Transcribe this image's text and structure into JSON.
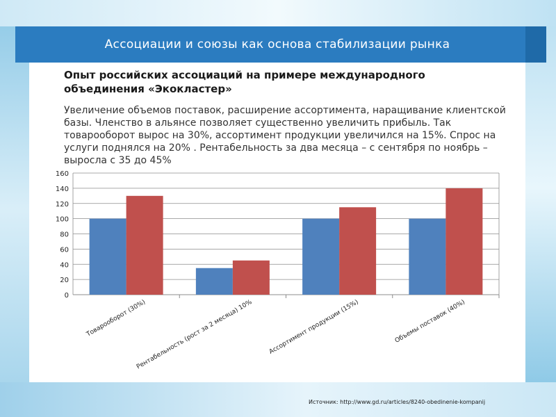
{
  "slide": {
    "title": "Ассоциации и союзы как основа стабилизации рынка",
    "subtitle": "Опыт российских ассоциаций на примере международного объединения «Экокластер»",
    "body": "Увеличение объемов поставок, расширение ассортимента, наращивание клиентской базы. Членство в альянсе позволяет существенно увеличить прибыль. Так товарооборот вырос на 30%, ассортимент продукции увеличился на 15%. Спрос на услуги поднялся на 20% . Рентабельность за два месяца – с сентября по ноябрь – выросла с 35 до 45%",
    "source": "Источник: http://www.gd.ru/articles/8240-obedinenie-kompanij"
  },
  "colors": {
    "title_bar": "#2b7cc0",
    "series_before": "#4f81bd",
    "series_after": "#c0504d"
  },
  "chart_data": {
    "type": "bar",
    "categories": [
      "Товарооборот (30%)",
      "Рентабельность (рост за 2 месяца) 10%",
      "Ассортимент продукции (15%)",
      "Объемы поставок (40%)"
    ],
    "series": [
      {
        "values": [
          100,
          35,
          100,
          100
        ]
      },
      {
        "values": [
          130,
          45,
          115,
          140
        ]
      }
    ],
    "ylim": [
      0,
      160
    ],
    "yticks": [
      0,
      20,
      40,
      60,
      80,
      100,
      120,
      140,
      160
    ],
    "grid": true,
    "legend": "none"
  }
}
